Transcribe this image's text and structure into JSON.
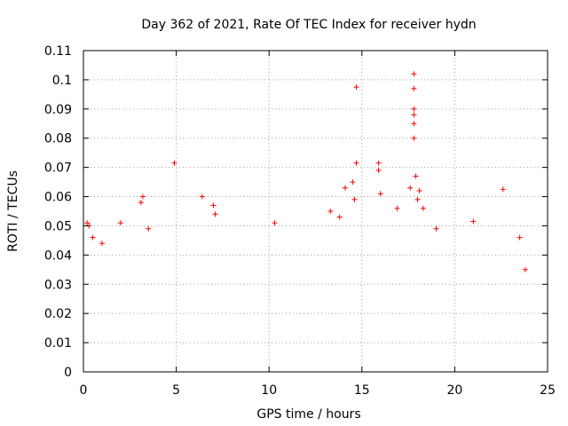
{
  "chart_data": {
    "type": "scatter",
    "title": "Day 362 of 2021, Rate Of TEC Index for receiver hydn",
    "xlabel": "GPS time / hours",
    "ylabel": "ROTI / TECUs",
    "xlim": [
      0,
      25
    ],
    "ylim": [
      0,
      0.11
    ],
    "xticks": [
      "0",
      "5",
      "10",
      "15",
      "20",
      "25"
    ],
    "yticks": [
      "0",
      "0.01",
      "0.02",
      "0.03",
      "0.04",
      "0.05",
      "0.06",
      "0.07",
      "0.08",
      "0.09",
      "0.1",
      "0.11"
    ],
    "grid": true,
    "marker": "plus",
    "color": "#ff0000",
    "series": [
      {
        "points": [
          [
            0.2,
            0.051
          ],
          [
            0.3,
            0.05
          ],
          [
            0.5,
            0.046
          ],
          [
            1.0,
            0.044
          ],
          [
            2.0,
            0.051
          ],
          [
            3.2,
            0.06
          ],
          [
            3.1,
            0.058
          ],
          [
            3.5,
            0.049
          ],
          [
            4.9,
            0.0715
          ],
          [
            6.4,
            0.06
          ],
          [
            7.0,
            0.057
          ],
          [
            7.1,
            0.054
          ],
          [
            10.3,
            0.051
          ],
          [
            13.3,
            0.055
          ],
          [
            13.8,
            0.053
          ],
          [
            14.1,
            0.063
          ],
          [
            14.5,
            0.065
          ],
          [
            14.6,
            0.059
          ],
          [
            14.7,
            0.0715
          ],
          [
            14.7,
            0.0975
          ],
          [
            15.9,
            0.0715
          ],
          [
            15.9,
            0.069
          ],
          [
            16.0,
            0.061
          ],
          [
            16.9,
            0.056
          ],
          [
            17.8,
            0.102
          ],
          [
            17.8,
            0.097
          ],
          [
            17.8,
            0.09
          ],
          [
            17.8,
            0.088
          ],
          [
            17.8,
            0.085
          ],
          [
            17.8,
            0.08
          ],
          [
            17.9,
            0.067
          ],
          [
            17.6,
            0.063
          ],
          [
            18.1,
            0.062
          ],
          [
            18.0,
            0.059
          ],
          [
            18.3,
            0.056
          ],
          [
            19.0,
            0.049
          ],
          [
            21.0,
            0.0515
          ],
          [
            22.6,
            0.0625
          ],
          [
            23.5,
            0.046
          ],
          [
            23.8,
            0.035
          ]
        ]
      }
    ]
  }
}
